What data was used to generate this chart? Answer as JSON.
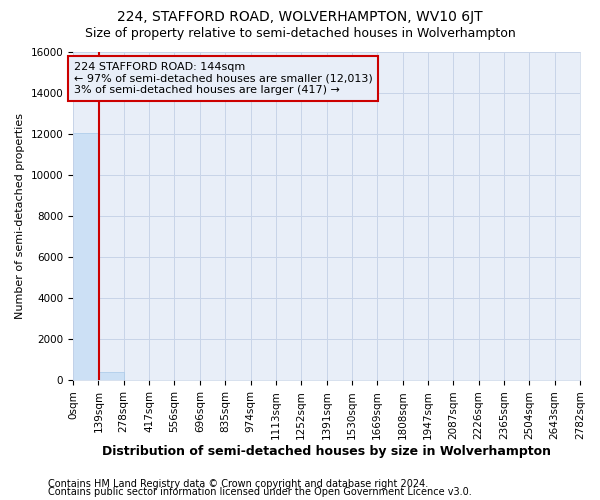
{
  "title": "224, STAFFORD ROAD, WOLVERHAMPTON, WV10 6JT",
  "subtitle": "Size of property relative to semi-detached houses in Wolverhampton",
  "xlabel_bottom": "Distribution of semi-detached houses by size in Wolverhampton",
  "ylabel": "Number of semi-detached properties",
  "footnote1": "Contains HM Land Registry data © Crown copyright and database right 2024.",
  "footnote2": "Contains public sector information licensed under the Open Government Licence v3.0.",
  "bar_edges": [
    0,
    139,
    278,
    417,
    556,
    696,
    835,
    974,
    1113,
    1252,
    1391,
    1530,
    1669,
    1808,
    1947,
    2087,
    2226,
    2365,
    2504,
    2643,
    2782
  ],
  "bar_heights": [
    12013,
    417,
    0,
    0,
    0,
    0,
    0,
    0,
    0,
    0,
    0,
    0,
    0,
    0,
    0,
    0,
    0,
    0,
    0,
    0
  ],
  "bar_color": "#cce0f5",
  "bar_edgecolor": "#a8c8e8",
  "property_size": 144,
  "vline_color": "#cc0000",
  "annotation_line1": "224 STAFFORD ROAD: 144sqm",
  "annotation_line2": "← 97% of semi-detached houses are smaller (12,013)",
  "annotation_line3": "3% of semi-detached houses are larger (417) →",
  "ylim": [
    0,
    16000
  ],
  "yticks": [
    0,
    2000,
    4000,
    6000,
    8000,
    10000,
    12000,
    14000,
    16000
  ],
  "grid_color": "#c8d4e8",
  "bg_color": "#ffffff",
  "plot_bg_color": "#e8eef8",
  "title_fontsize": 10,
  "subtitle_fontsize": 9,
  "ylabel_fontsize": 8,
  "xlabel_fontsize": 9,
  "tick_fontsize": 7.5,
  "footnote_fontsize": 7
}
